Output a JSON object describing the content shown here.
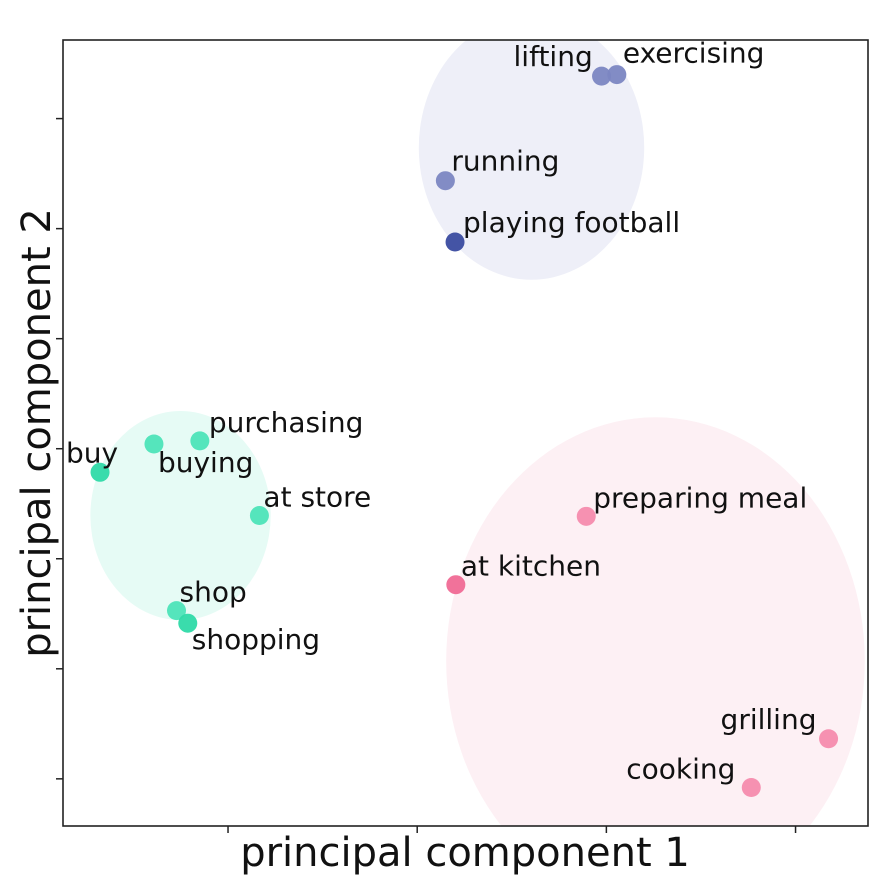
{
  "chart_data": {
    "type": "scatter",
    "xlabel": "principal component 1",
    "ylabel": "principal component 2",
    "xlim": [
      0,
      1
    ],
    "ylim": [
      0,
      1
    ],
    "grid": false,
    "tick_labels_shown": false,
    "x_ticks": [
      0.205,
      0.44,
      0.675,
      0.91
    ],
    "y_ticks": [
      0.06,
      0.2,
      0.34,
      0.48,
      0.62,
      0.76,
      0.9
    ],
    "clusters": [
      {
        "id": "exercise",
        "ellipse": {
          "cx": 0.582,
          "cy": 0.863,
          "rx": 0.14,
          "ry": 0.168,
          "color": "#eeeff8"
        },
        "points": [
          {
            "label": "lifting",
            "x": 0.669,
            "y": 0.954,
            "color": "#7b86c2"
          },
          {
            "label": "exercising",
            "x": 0.688,
            "y": 0.956,
            "color": "#7b86c2"
          },
          {
            "label": "running",
            "x": 0.475,
            "y": 0.821,
            "color": "#7b86c2"
          },
          {
            "label": "playing football",
            "x": 0.487,
            "y": 0.743,
            "color": "#3a4ba0"
          }
        ]
      },
      {
        "id": "shopping",
        "ellipse": {
          "cx": 0.146,
          "cy": 0.395,
          "rx": 0.112,
          "ry": 0.133,
          "color": "#e6fbf5"
        },
        "points": [
          {
            "label": "buy",
            "x": 0.046,
            "y": 0.45,
            "color": "#2fdaa8"
          },
          {
            "label": "buying",
            "x": 0.113,
            "y": 0.486,
            "color": "#4de4b8"
          },
          {
            "label": "purchasing",
            "x": 0.17,
            "y": 0.49,
            "color": "#4de4b8"
          },
          {
            "label": "at store",
            "x": 0.244,
            "y": 0.395,
            "color": "#4de4b8"
          },
          {
            "label": "shop",
            "x": 0.141,
            "y": 0.274,
            "color": "#4de4b8"
          },
          {
            "label": "shopping",
            "x": 0.155,
            "y": 0.258,
            "color": "#2fdaa8"
          }
        ]
      },
      {
        "id": "cooking",
        "ellipse": {
          "cx": 0.736,
          "cy": 0.21,
          "rx": 0.26,
          "ry": 0.31,
          "color": "#fdf0f4"
        },
        "points": [
          {
            "label": "preparing meal",
            "x": 0.65,
            "y": 0.394,
            "color": "#f58bad"
          },
          {
            "label": "at kitchen",
            "x": 0.488,
            "y": 0.307,
            "color": "#f06a95"
          },
          {
            "label": "grilling",
            "x": 0.951,
            "y": 0.111,
            "color": "#f58bad"
          },
          {
            "label": "cooking",
            "x": 0.855,
            "y": 0.049,
            "color": "#f58bad"
          }
        ]
      }
    ]
  }
}
